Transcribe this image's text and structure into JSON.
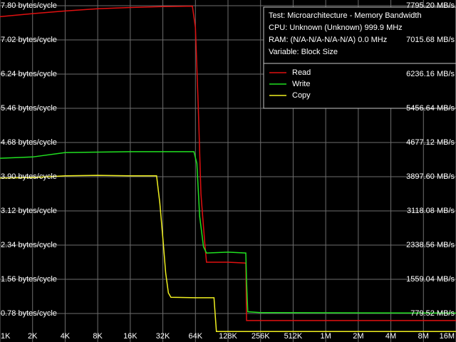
{
  "chart_data": {
    "type": "line",
    "annotations": [
      "Test: Microarchitecture - Memory Bandwidth",
      "CPU: Unknown (Unknown) 999.9 MHz",
      "RAM:  (N/A-N/A-N/A-N/A) 0.0 MHz",
      "Variable: Block Size"
    ],
    "xscale": "log",
    "xlim": [
      1,
      16384
    ],
    "xticks": [
      {
        "value": 1,
        "label": "1K"
      },
      {
        "value": 2,
        "label": "2K"
      },
      {
        "value": 4,
        "label": "4K"
      },
      {
        "value": 8,
        "label": "8K"
      },
      {
        "value": 16,
        "label": "16K"
      },
      {
        "value": 32,
        "label": "32K"
      },
      {
        "value": 64,
        "label": "64K"
      },
      {
        "value": 128,
        "label": "128K"
      },
      {
        "value": 256,
        "label": "256K"
      },
      {
        "value": 512,
        "label": "512K"
      },
      {
        "value": 1024,
        "label": "1M"
      },
      {
        "value": 2048,
        "label": "2M"
      },
      {
        "value": 4096,
        "label": "4M"
      },
      {
        "value": 8192,
        "label": "8M"
      },
      {
        "value": 16384,
        "label": "16M"
      }
    ],
    "ylim": [
      0.13,
      7.93
    ],
    "yticks": [
      {
        "value": 0.78,
        "label": "0.78 bytes/cycle"
      },
      {
        "value": 1.56,
        "label": "1.56 bytes/cycle"
      },
      {
        "value": 2.34,
        "label": "2.34 bytes/cycle"
      },
      {
        "value": 3.12,
        "label": "3.12 bytes/cycle"
      },
      {
        "value": 3.9,
        "label": "3.90 bytes/cycle"
      },
      {
        "value": 4.68,
        "label": "4.68 bytes/cycle"
      },
      {
        "value": 5.46,
        "label": "5.46 bytes/cycle"
      },
      {
        "value": 6.24,
        "label": "6.24 bytes/cycle"
      },
      {
        "value": 7.02,
        "label": "7.02 bytes/cycle"
      },
      {
        "value": 7.8,
        "label": "7.80 bytes/cycle"
      }
    ],
    "y2lim": [
      129.9,
      7925.1
    ],
    "y2ticks": [
      {
        "value": 779.52,
        "label": "779.52 MB/s"
      },
      {
        "value": 1559.04,
        "label": "1559.04 MB/s"
      },
      {
        "value": 2338.56,
        "label": "2338.56 MB/s"
      },
      {
        "value": 3118.08,
        "label": "3118.08 MB/s"
      },
      {
        "value": 3897.6,
        "label": "3897.60 MB/s"
      },
      {
        "value": 4677.12,
        "label": "4677.12 MB/s"
      },
      {
        "value": 5456.64,
        "label": "5456.64 MB/s"
      },
      {
        "value": 6236.16,
        "label": "6236.16 MB/s"
      },
      {
        "value": 7015.68,
        "label": "7015.68 MB/s"
      },
      {
        "value": 7795.2,
        "label": "7795.20 MB/s"
      }
    ],
    "grid": true,
    "legend": "upper right",
    "series": [
      {
        "name": "Read",
        "color": "#e01010",
        "x": [
          1,
          2,
          4,
          8,
          16,
          32,
          60,
          64,
          68,
          72,
          78,
          81,
          128,
          187,
          190,
          256,
          16384
        ],
        "values": [
          7.55,
          7.62,
          7.68,
          7.73,
          7.76,
          7.78,
          7.79,
          7.3,
          5.5,
          3.5,
          2.4,
          1.95,
          1.95,
          1.93,
          0.62,
          0.62,
          0.62
        ]
      },
      {
        "name": "Write",
        "color": "#20e020",
        "x": [
          1,
          2,
          4,
          8,
          16,
          32,
          62,
          66,
          70,
          76,
          81,
          128,
          187,
          190,
          195,
          256,
          16384
        ],
        "values": [
          4.32,
          4.35,
          4.45,
          4.46,
          4.47,
          4.47,
          4.47,
          4.2,
          3.0,
          2.3,
          2.16,
          2.18,
          2.16,
          1.5,
          0.82,
          0.8,
          0.79
        ]
      },
      {
        "name": "Copy",
        "color": "#f0f020",
        "x": [
          1,
          2,
          4,
          8,
          16,
          28,
          30,
          32,
          34,
          36,
          38,
          64,
          95,
          100,
          16384
        ],
        "values": [
          3.87,
          3.88,
          3.92,
          3.93,
          3.92,
          3.92,
          3.3,
          2.5,
          1.7,
          1.25,
          1.15,
          1.14,
          1.14,
          0.37,
          0.37
        ]
      }
    ]
  }
}
